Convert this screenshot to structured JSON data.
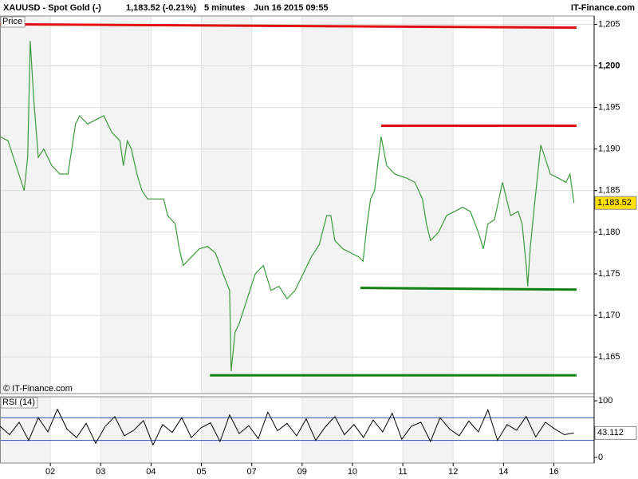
{
  "chart_data": [
    {
      "type": "line",
      "title": "XAUUSD - Spot Gold (-)",
      "quote": "1,183.52 (-0.21%)",
      "interval": "5 minutes",
      "date": "Jun 16 2015 09:55",
      "source": "IT-Finance.com",
      "panel_label": "Price",
      "copyright": "© IT-Finance.com",
      "color": "#3c9a3c",
      "x": [
        0,
        0.16,
        0.32,
        0.48,
        0.55,
        0.6,
        0.67,
        0.76,
        0.87,
        1.03,
        1.19,
        1.35,
        1.5,
        1.58,
        1.74,
        1.9,
        2.06,
        2.22,
        2.38,
        2.45,
        2.53,
        2.61,
        2.72,
        2.82,
        2.93,
        3.09,
        3.25,
        3.33,
        3.48,
        3.56,
        3.64,
        3.8,
        3.96,
        4.12,
        4.28,
        4.43,
        4.56,
        4.59,
        4.67,
        4.75,
        4.91,
        5.07,
        5.23,
        5.38,
        5.54,
        5.7,
        5.86,
        6.02,
        6.18,
        6.34,
        6.49,
        6.57,
        6.65,
        6.81,
        6.97,
        7.13,
        7.21,
        7.29,
        7.36,
        7.44,
        7.57,
        7.68,
        7.84,
        8.08,
        8.24,
        8.39,
        8.47,
        8.55,
        8.71,
        8.87,
        9.03,
        9.19,
        9.34,
        9.5,
        9.6,
        9.69,
        9.82,
        9.98,
        10.14,
        10.29,
        10.37,
        10.45,
        10.48,
        10.53,
        10.61,
        10.74,
        10.93,
        11.09,
        11.24,
        11.32,
        11.4
      ],
      "values": [
        1191.5,
        1191,
        1188,
        1185,
        1189,
        1203,
        1196,
        1189,
        1190,
        1188,
        1187,
        1187,
        1193,
        1194,
        1193,
        1193.5,
        1194,
        1192,
        1191,
        1188,
        1191,
        1190,
        1187,
        1185,
        1184,
        1184,
        1184,
        1182,
        1181,
        1178,
        1176,
        1177,
        1178,
        1178.3,
        1177.5,
        1175,
        1173,
        1163.3,
        1168,
        1169,
        1172,
        1175,
        1176,
        1173,
        1173.5,
        1172,
        1173,
        1175,
        1177,
        1178.5,
        1182,
        1182,
        1179,
        1178,
        1177.5,
        1177,
        1176.5,
        1181,
        1184,
        1185,
        1191.5,
        1188,
        1187,
        1186.5,
        1186,
        1184,
        1181,
        1179,
        1180,
        1182,
        1182.5,
        1183,
        1182.5,
        1180,
        1178,
        1181,
        1181.5,
        1186,
        1182,
        1182.5,
        1181,
        1176,
        1173.5,
        1178,
        1183,
        1190.5,
        1187,
        1186.5,
        1186,
        1187,
        1183.52
      ],
      "lines": [
        {
          "x": [
            0,
            11.45
          ],
          "y": [
            1205,
            1204.6
          ],
          "color": "#e01010"
        },
        {
          "x": [
            7.57,
            11.45
          ],
          "y": [
            1192.8,
            1192.8
          ],
          "color": "#e01010"
        },
        {
          "x": [
            7.16,
            11.45
          ],
          "y": [
            1173.3,
            1173.1
          ],
          "color": "#108010"
        },
        {
          "x": [
            4.17,
            11.45
          ],
          "y": [
            1162.8,
            1162.8
          ],
          "color": "#108010"
        }
      ],
      "last_value": 1183.52,
      "last_value_label": "1,183.52",
      "xlim": [
        0,
        11.8
      ],
      "xticks": [
        {
          "value": 1,
          "label": "02"
        },
        {
          "value": 2,
          "label": "03"
        },
        {
          "value": 3,
          "label": "04"
        },
        {
          "value": 4,
          "label": "05"
        },
        {
          "value": 5,
          "label": "07"
        },
        {
          "value": 6,
          "label": "09"
        },
        {
          "value": 7,
          "label": "10"
        },
        {
          "value": 8,
          "label": "11"
        },
        {
          "value": 9,
          "label": "12"
        },
        {
          "value": 10,
          "label": "14"
        },
        {
          "value": 11,
          "label": "16"
        }
      ],
      "ylim": [
        1160.6,
        1206
      ],
      "yticks": [
        {
          "value": 1165,
          "label": "1,165"
        },
        {
          "value": 1170,
          "label": "1,170"
        },
        {
          "value": 1175,
          "label": "1,175"
        },
        {
          "value": 1180,
          "label": "1,180"
        },
        {
          "value": 1185,
          "label": "1,185"
        },
        {
          "value": 1190,
          "label": "1,190"
        },
        {
          "value": 1195,
          "label": "1,195"
        },
        {
          "value": 1200,
          "label": "1,200"
        },
        {
          "value": 1205,
          "label": "1,205"
        }
      ],
      "grid": true
    },
    {
      "type": "line",
      "panel_label": "RSI (14)",
      "color": "#000000",
      "x": [
        0,
        0.19,
        0.38,
        0.57,
        0.76,
        0.95,
        1.14,
        1.33,
        1.52,
        1.71,
        1.9,
        2.09,
        2.28,
        2.47,
        2.66,
        2.85,
        3.04,
        3.23,
        3.42,
        3.61,
        3.8,
        3.99,
        4.18,
        4.37,
        4.56,
        4.75,
        4.94,
        5.13,
        5.32,
        5.51,
        5.7,
        5.89,
        6.08,
        6.27,
        6.46,
        6.65,
        6.84,
        7.03,
        7.22,
        7.41,
        7.6,
        7.79,
        7.98,
        8.17,
        8.36,
        8.55,
        8.74,
        8.93,
        9.12,
        9.31,
        9.5,
        9.69,
        9.88,
        10.07,
        10.26,
        10.45,
        10.64,
        10.83,
        11.02,
        11.21,
        11.4
      ],
      "values": [
        55,
        40,
        62,
        30,
        70,
        45,
        85,
        50,
        35,
        60,
        25,
        55,
        72,
        38,
        48,
        65,
        22,
        58,
        44,
        70,
        35,
        52,
        61,
        28,
        75,
        42,
        56,
        33,
        80,
        47,
        60,
        38,
        68,
        30,
        54,
        72,
        40,
        58,
        35,
        66,
        45,
        78,
        32,
        55,
        62,
        28,
        70,
        50,
        38,
        64,
        45,
        84,
        30,
        58,
        48,
        72,
        36,
        62,
        50,
        40,
        43.112
      ],
      "levels": [
        30,
        70
      ],
      "last_value": 43.112,
      "xlim": [
        0,
        11.8
      ],
      "ylim": [
        -10,
        107
      ],
      "yticks": [
        0,
        100
      ]
    }
  ]
}
